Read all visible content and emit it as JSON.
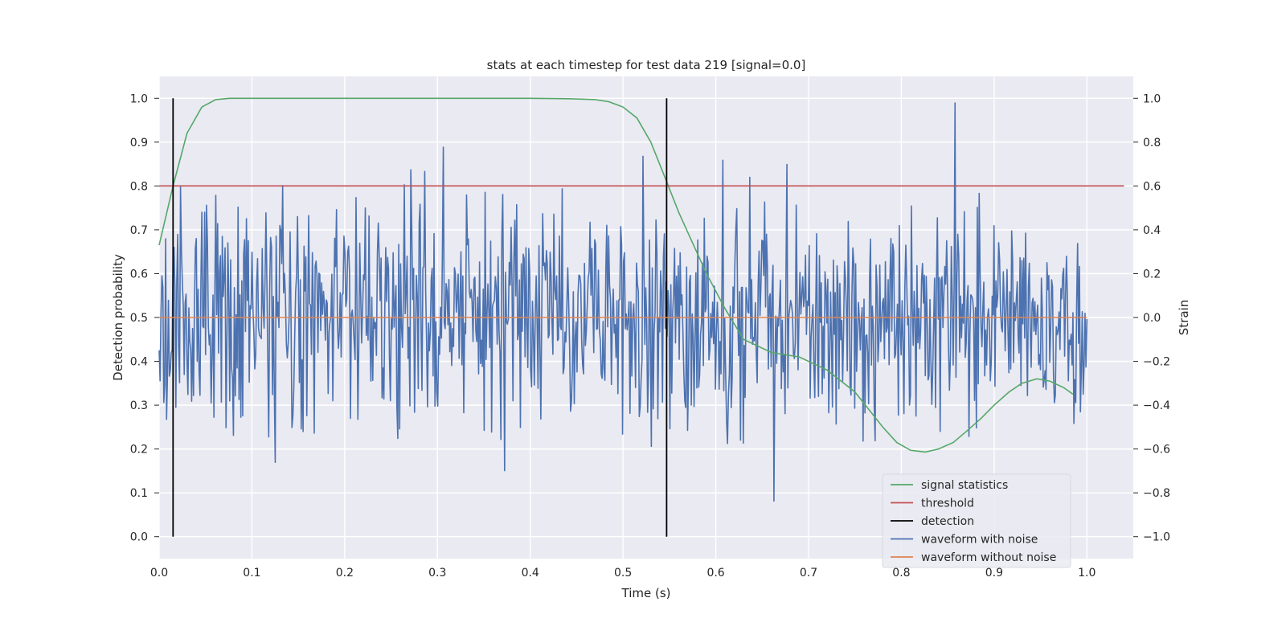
{
  "chart_data": {
    "type": "line",
    "title": "stats at each timestep for test data 219 [signal=0.0]",
    "xlabel": "Time (s)",
    "ylabel_left": "Detection probability",
    "ylabel_right": "Strain",
    "xlim": [
      0.0,
      1.05
    ],
    "ylim_left": [
      -0.05,
      1.05
    ],
    "ylim_right": [
      -1.1,
      1.1
    ],
    "x_ticks": [
      "0.0",
      "0.1",
      "0.2",
      "0.3",
      "0.4",
      "0.5",
      "0.6",
      "0.7",
      "0.8",
      "0.9",
      "1.0"
    ],
    "y_ticks_left": [
      "0.0",
      "0.1",
      "0.2",
      "0.3",
      "0.4",
      "0.5",
      "0.6",
      "0.7",
      "0.8",
      "0.9",
      "1.0"
    ],
    "y_ticks_right": [
      "−1.0",
      "−0.8",
      "−0.6",
      "−0.4",
      "−0.2",
      "0.0",
      "0.2",
      "0.4",
      "0.6",
      "0.8",
      "1.0"
    ],
    "grid": true,
    "legend_position": "lower-right",
    "series": [
      {
        "name": "signal statistics",
        "axis": "left",
        "color": "#55a868",
        "x": [
          0.0,
          0.015,
          0.03,
          0.046,
          0.061,
          0.076,
          0.1,
          0.2,
          0.3,
          0.4,
          0.44,
          0.455,
          0.47,
          0.485,
          0.5,
          0.515,
          0.53,
          0.547,
          0.56,
          0.575,
          0.59,
          0.61,
          0.63,
          0.66,
          0.69,
          0.72,
          0.75,
          0.78,
          0.795,
          0.81,
          0.826,
          0.84,
          0.856,
          0.87,
          0.886,
          0.9,
          0.916,
          0.93,
          0.946,
          0.96,
          0.975,
          0.985
        ],
        "y": [
          0.665,
          0.8,
          0.92,
          0.98,
          0.997,
          1.0,
          1.0,
          1.0,
          1.0,
          1.0,
          0.999,
          0.998,
          0.997,
          0.992,
          0.98,
          0.955,
          0.9,
          0.81,
          0.74,
          0.67,
          0.6,
          0.52,
          0.45,
          0.42,
          0.41,
          0.38,
          0.33,
          0.25,
          0.215,
          0.197,
          0.193,
          0.2,
          0.215,
          0.24,
          0.27,
          0.3,
          0.33,
          0.35,
          0.36,
          0.355,
          0.34,
          0.325
        ]
      },
      {
        "name": "threshold",
        "axis": "left",
        "color": "#c44e52",
        "x": [
          0.0,
          1.04
        ],
        "y": [
          0.8,
          0.8
        ]
      },
      {
        "name": "detection",
        "axis": "left",
        "color": "#000000",
        "segments": [
          {
            "x": 0.015,
            "y": [
              0.0,
              1.0
            ]
          },
          {
            "x": 0.547,
            "y": [
              0.0,
              1.0
            ]
          }
        ]
      },
      {
        "name": "waveform with noise",
        "axis": "right",
        "color": "#4c72b0",
        "x_range": [
          0.0,
          1.0
        ],
        "points": 1000,
        "amplitude_std": 0.26,
        "y_min": -0.92,
        "y_max": 1.0
      },
      {
        "name": "waveform without noise",
        "axis": "right",
        "color": "#dd8452",
        "x": [
          0.0,
          1.0
        ],
        "y": [
          0.0,
          0.0
        ]
      }
    ]
  }
}
